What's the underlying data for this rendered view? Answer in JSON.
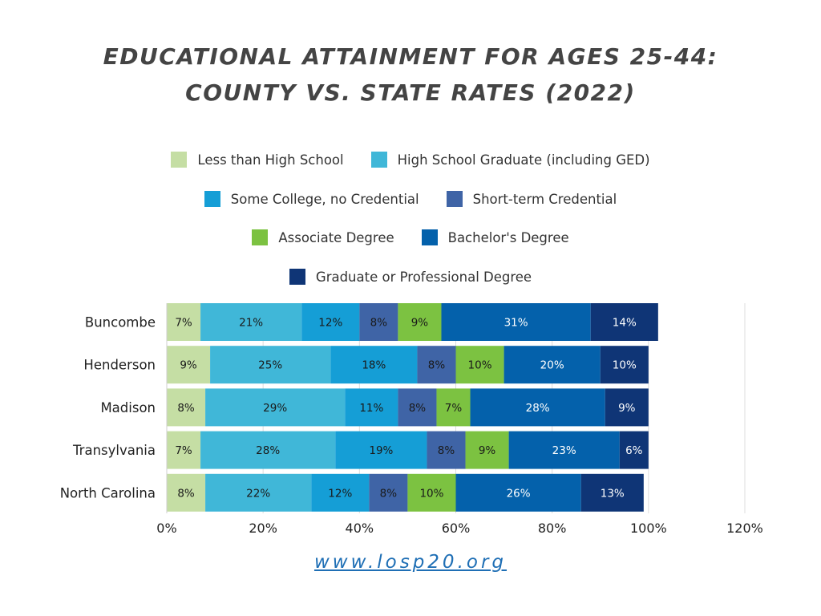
{
  "title_line1": "EDUCATIONAL ATTAINMENT FOR AGES 25-44:",
  "title_line2": "COUNTY VS. STATE RATES (2022)",
  "footer_url": "www.losp20.org",
  "chart_data": {
    "type": "bar",
    "orientation": "horizontal",
    "stacked": true,
    "categories": [
      "Buncombe",
      "Henderson",
      "Madison",
      "Transylvania",
      "North Carolina"
    ],
    "series": [
      {
        "name": "Less than High School",
        "color": "#c5dea4",
        "values": [
          7,
          9,
          8,
          7,
          8
        ],
        "labels": [
          "7%",
          "9%",
          "8%",
          "7%",
          "8%"
        ]
      },
      {
        "name": "High School Graduate (including GED)",
        "color": "#40b7d8",
        "values": [
          21,
          25,
          29,
          28,
          22
        ],
        "labels": [
          "21%",
          "25%",
          "29%",
          "28%",
          "22%"
        ]
      },
      {
        "name": "Some College, no Credential",
        "color": "#159ed6",
        "values": [
          12,
          18,
          11,
          19,
          12
        ],
        "labels": [
          "12%",
          "18%",
          "11%",
          "19%",
          "12%"
        ]
      },
      {
        "name": "Short-term Credential",
        "color": "#3f64a6",
        "values": [
          8,
          8,
          8,
          8,
          8
        ],
        "labels": [
          "8%",
          "8%",
          "8%",
          "8%",
          "8%"
        ]
      },
      {
        "name": "Associate Degree",
        "color": "#7cc241",
        "values": [
          9,
          10,
          7,
          9,
          10
        ],
        "labels": [
          "9%",
          "10%",
          "7%",
          "9%",
          "10%"
        ]
      },
      {
        "name": "Bachelor's Degree",
        "color": "#0461ab",
        "values": [
          31,
          20,
          28,
          23,
          26
        ],
        "labels": [
          "31%",
          "20%",
          "28%",
          "23%",
          "26%"
        ]
      },
      {
        "name": "Graduate or Professional Degree",
        "color": "#0f3576",
        "values": [
          14,
          10,
          9,
          6,
          13
        ],
        "labels": [
          "14%",
          "10%",
          "9%",
          "6%",
          "13%"
        ]
      }
    ],
    "xlim": [
      0,
      120
    ],
    "xticks": [
      0,
      20,
      40,
      60,
      80,
      100,
      120
    ],
    "xtick_labels": [
      "0%",
      "20%",
      "40%",
      "60%",
      "80%",
      "100%",
      "120%"
    ],
    "grid": "vertical",
    "legend_position": "top"
  }
}
